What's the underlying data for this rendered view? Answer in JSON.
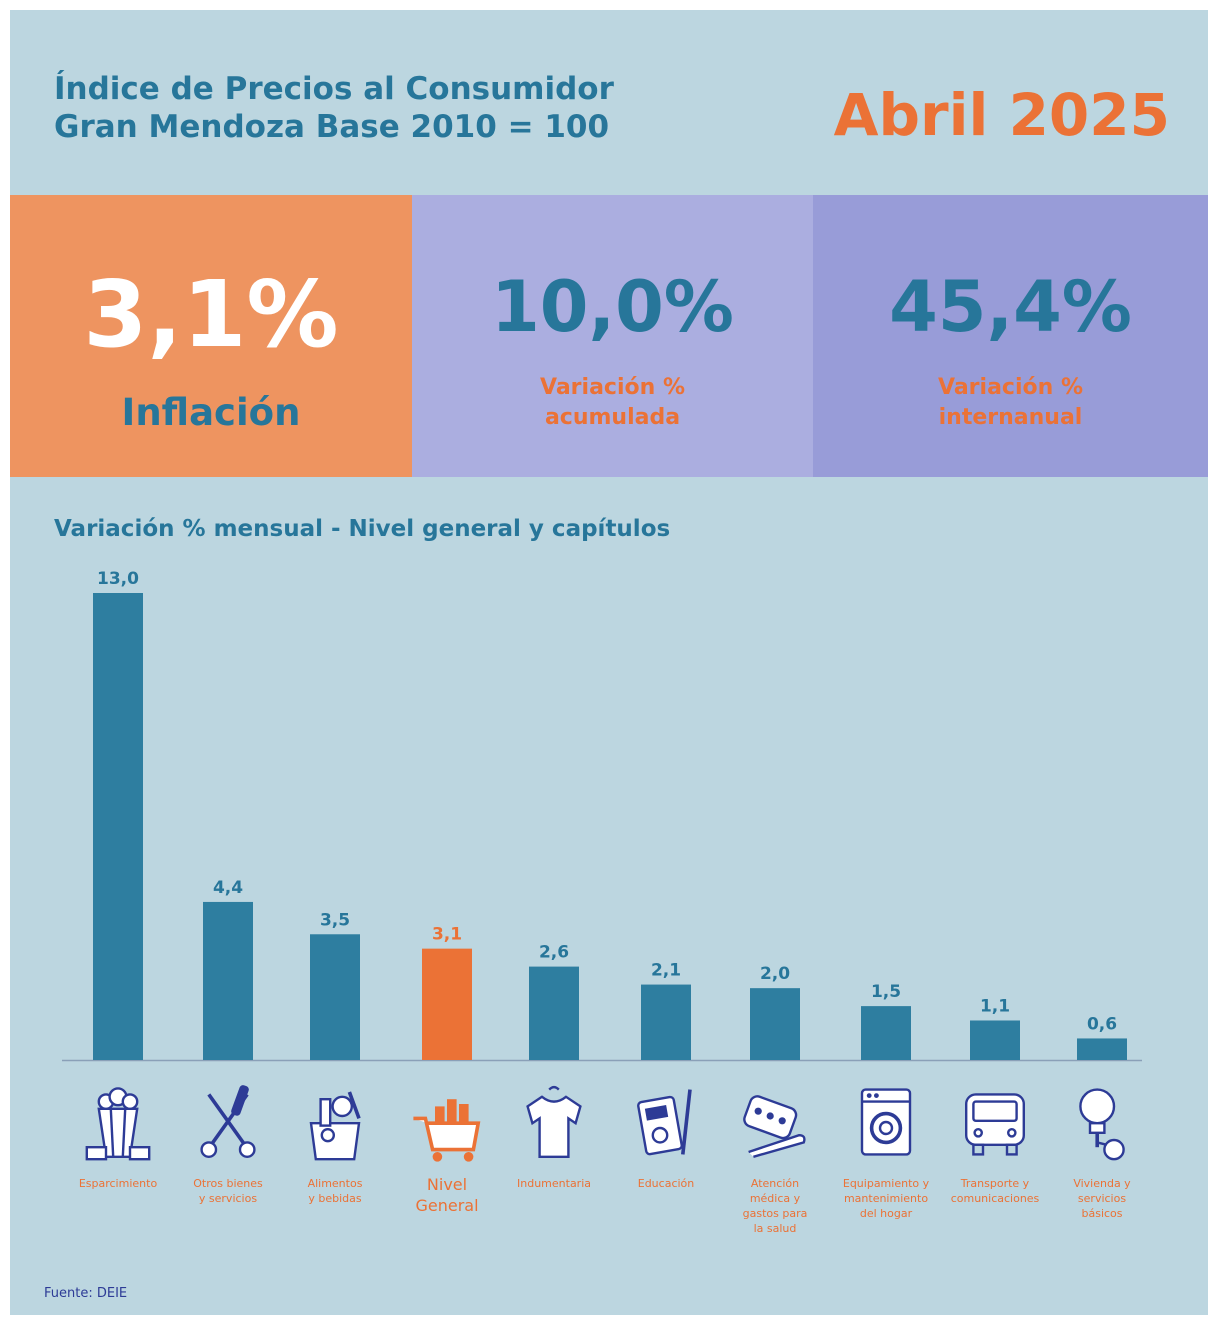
{
  "header": {
    "title_line1": "Índice de Precios al Consumidor",
    "title_line2": "Gran Mendoza Base 2010 = 100",
    "period": "Abril 2025"
  },
  "kpis": [
    {
      "value": "3,1%",
      "label_line1": "Inflación",
      "label_line2": ""
    },
    {
      "value": "10,0%",
      "label_line1": "Variación %",
      "label_line2": "acumulada"
    },
    {
      "value": "45,4%",
      "label_line1": "Variación %",
      "label_line2": "internanual"
    }
  ],
  "chart_data": {
    "type": "bar",
    "title": "Variación % mensual - Nivel general y capítulos",
    "categories": [
      "Esparcimiento",
      "Otros bienes y servicios",
      "Alimentos y bebidas",
      "Nivel General",
      "Indumentaria",
      "Educación",
      "Atención médica y gastos para la salud",
      "Equipamiento y mantenimiento del hogar",
      "Transporte y comunicaciones",
      "Vivienda y servicios básicos"
    ],
    "category_lines": [
      [
        "Esparcimiento"
      ],
      [
        "Otros bienes",
        "y servicios"
      ],
      [
        "Alimentos",
        "y bebidas"
      ],
      [
        "Nivel",
        "General"
      ],
      [
        "Indumentaria"
      ],
      [
        "Educación"
      ],
      [
        "Atención",
        "médica y",
        "gastos para",
        "la salud"
      ],
      [
        "Equipamiento y",
        "mantenimiento",
        "del hogar"
      ],
      [
        "Transporte y",
        "comunicaciones"
      ],
      [
        "Vivienda y",
        "servicios",
        "básicos"
      ]
    ],
    "values": [
      13.0,
      4.4,
      3.5,
      3.1,
      2.6,
      2.1,
      2.0,
      1.5,
      1.1,
      0.6
    ],
    "value_labels": [
      "13,0",
      "4,4",
      "3,5",
      "3,1",
      "2,6",
      "2,1",
      "2,0",
      "1,5",
      "1,1",
      "0,6"
    ],
    "highlight_index": 3,
    "ylim": [
      0,
      13
    ],
    "colors": {
      "bar": "#2e7ea0",
      "highlight": "#eb7236",
      "label": "#27769a",
      "baseline": "#8aa0b8"
    },
    "icons": [
      "popcorn-icon",
      "scissors-icon",
      "grocery-bag-icon",
      "shopping-cart-icon",
      "tshirt-icon",
      "calculator-icon",
      "pills-icon",
      "washing-machine-icon",
      "bus-icon",
      "lightbulb-key-icon"
    ]
  },
  "source": "Fuente: DEIE"
}
